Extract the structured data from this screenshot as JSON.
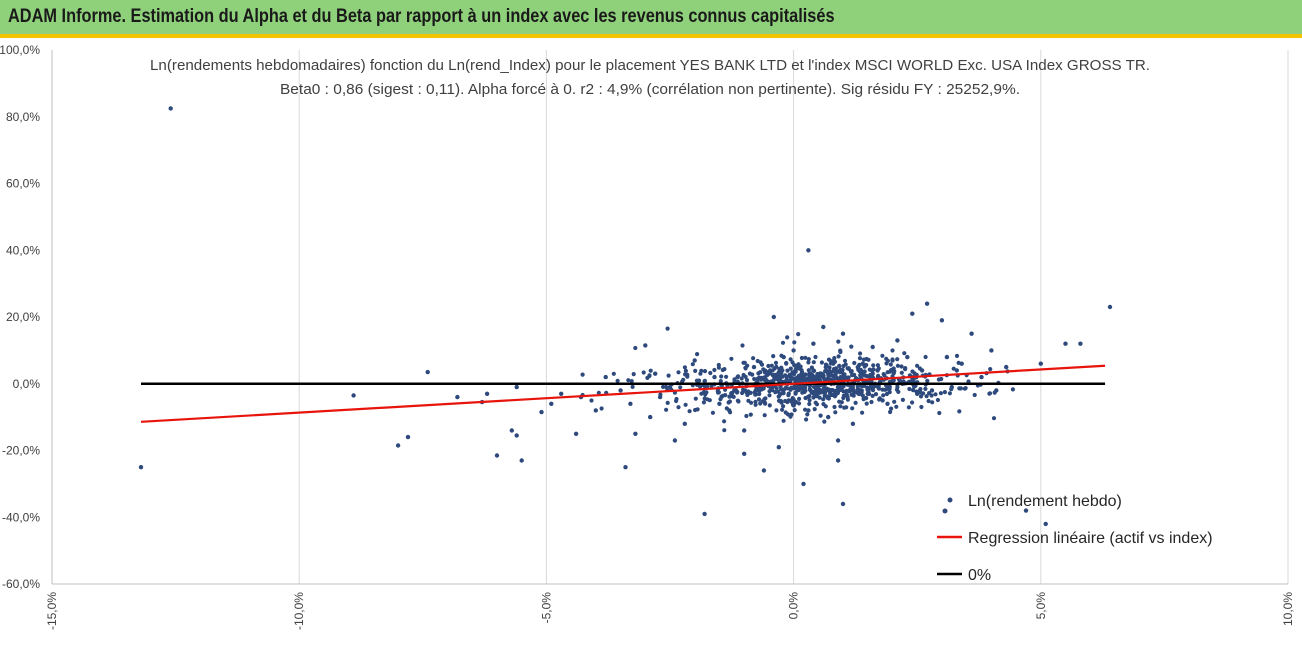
{
  "header": {
    "title": "ADAM Informe. Estimation du Alpha et du Beta par rapport à un index avec les revenus connus capitalisés",
    "accent_color": "#f2c400",
    "bar_color": "#8fd07a"
  },
  "chart_data": {
    "type": "scatter",
    "title_line1": "Ln(rendements hebdomadaires) fonction du Ln(rend_Index) pour le placement YES BANK LTD et l'index MSCI WORLD Exc. USA Index GROSS TR.",
    "title_line2": "Beta0 : 0,86 (sigest : 0,11). Alpha forcé à 0. r2 : 4,9% (corrélation non pertinente). Sig résidu FY : 25252,9%.",
    "xlim": [
      -0.15,
      0.1
    ],
    "ylim": [
      -0.6,
      1.0
    ],
    "x_ticks": [
      -0.15,
      -0.1,
      -0.05,
      0.0,
      0.05,
      0.1
    ],
    "x_tick_labels": [
      "-15,0%",
      "-10,0%",
      "-5,0%",
      "0,0%",
      "5,0%",
      "10,0%"
    ],
    "y_ticks": [
      1.0,
      0.8,
      0.6,
      0.4,
      0.2,
      0.0,
      -0.2,
      -0.4,
      -0.6
    ],
    "y_tick_labels": [
      "100,0%",
      "80,0%",
      "60,0%",
      "40,0%",
      "20,0%",
      "0,0%",
      "-20,0%",
      "-40,0%",
      "-60,0%"
    ],
    "series": [
      {
        "name": "Ln(rendement hebdo)",
        "kind": "points",
        "color": "#2e4a7d",
        "x": [
          -0.132,
          -0.126,
          -0.089,
          -0.08,
          -0.078,
          -0.074,
          -0.068,
          -0.063,
          -0.062,
          -0.06,
          -0.057,
          -0.056,
          -0.056,
          -0.055,
          -0.051,
          -0.049,
          -0.047,
          -0.044,
          -0.043,
          -0.04,
          -0.038,
          -0.035,
          -0.034,
          -0.033,
          -0.032,
          -0.03,
          -0.029,
          -0.027,
          -0.024,
          -0.022,
          -0.018,
          -0.016,
          -0.015,
          -0.013,
          -0.012,
          -0.01,
          -0.008,
          -0.006,
          -0.005,
          -0.003,
          -0.002,
          -0.001,
          0.0,
          0.001,
          0.002,
          0.003,
          0.004,
          0.005,
          0.006,
          0.007,
          0.008,
          0.009,
          0.01,
          0.011,
          0.012,
          0.014,
          0.015,
          0.016,
          0.017,
          0.018,
          0.02,
          0.021,
          0.022,
          0.024,
          0.026,
          0.027,
          0.028,
          0.03,
          0.031,
          0.032,
          0.034,
          0.036,
          0.038,
          0.04,
          0.041,
          0.043,
          0.05,
          0.055,
          0.058,
          0.064,
          -0.025,
          -0.028,
          0.003,
          0.01,
          -0.02,
          0.0,
          0.006,
          0.013,
          -0.01,
          0.019,
          0.002,
          0.004,
          0.009,
          -0.004,
          0.016,
          0.023,
          0.025,
          0.033,
          0.047,
          0.051
        ],
        "y": [
          -0.25,
          0.825,
          -0.035,
          -0.185,
          -0.16,
          0.035,
          -0.04,
          -0.055,
          -0.03,
          -0.215,
          -0.14,
          -0.155,
          -0.01,
          -0.23,
          -0.085,
          -0.06,
          -0.03,
          -0.15,
          -0.04,
          -0.08,
          0.02,
          -0.02,
          -0.25,
          -0.06,
          -0.15,
          0.115,
          -0.1,
          -0.04,
          -0.17,
          -0.12,
          -0.39,
          0.02,
          -0.06,
          -0.08,
          -0.02,
          -0.21,
          0.05,
          -0.26,
          0.03,
          -0.19,
          0.08,
          -0.05,
          0.1,
          0.02,
          -0.3,
          0.4,
          0.04,
          -0.02,
          0.02,
          -0.1,
          0.06,
          -0.23,
          0.15,
          0.01,
          -0.12,
          0.06,
          -0.03,
          0.11,
          0.04,
          -0.05,
          0.07,
          0.13,
          0.0,
          0.21,
          0.04,
          0.24,
          -0.02,
          0.19,
          0.08,
          -0.01,
          0.06,
          0.15,
          0.02,
          0.1,
          -0.02,
          0.05,
          0.06,
          0.12,
          0.12,
          0.23,
          -0.01,
          0.03,
          -0.08,
          -0.36,
          0.07,
          -0.05,
          0.17,
          0.05,
          -0.14,
          -0.06,
          0.01,
          0.12,
          -0.17,
          0.2,
          0.03,
          0.08,
          -0.03,
          0.04,
          -0.38,
          -0.42
        ]
      },
      {
        "name": "Regression linéaire (actif vs index)",
        "kind": "line",
        "color": "#e8140c",
        "x": [
          -0.132,
          0.063
        ],
        "y": [
          -0.114,
          0.054
        ]
      },
      {
        "name": "0%",
        "kind": "line",
        "color": "#000000",
        "x": [
          -0.132,
          0.063
        ],
        "y": [
          0.0,
          0.0
        ]
      }
    ],
    "cluster": {
      "description_note": "dense central cloud rendered procedurally",
      "center_x": 0.005,
      "center_y": 0.0,
      "sd_x": 0.015,
      "sd_y": 0.045,
      "beta": 0.86,
      "count": 900
    },
    "grid": "vertical",
    "legend_position": "bottom-right"
  }
}
